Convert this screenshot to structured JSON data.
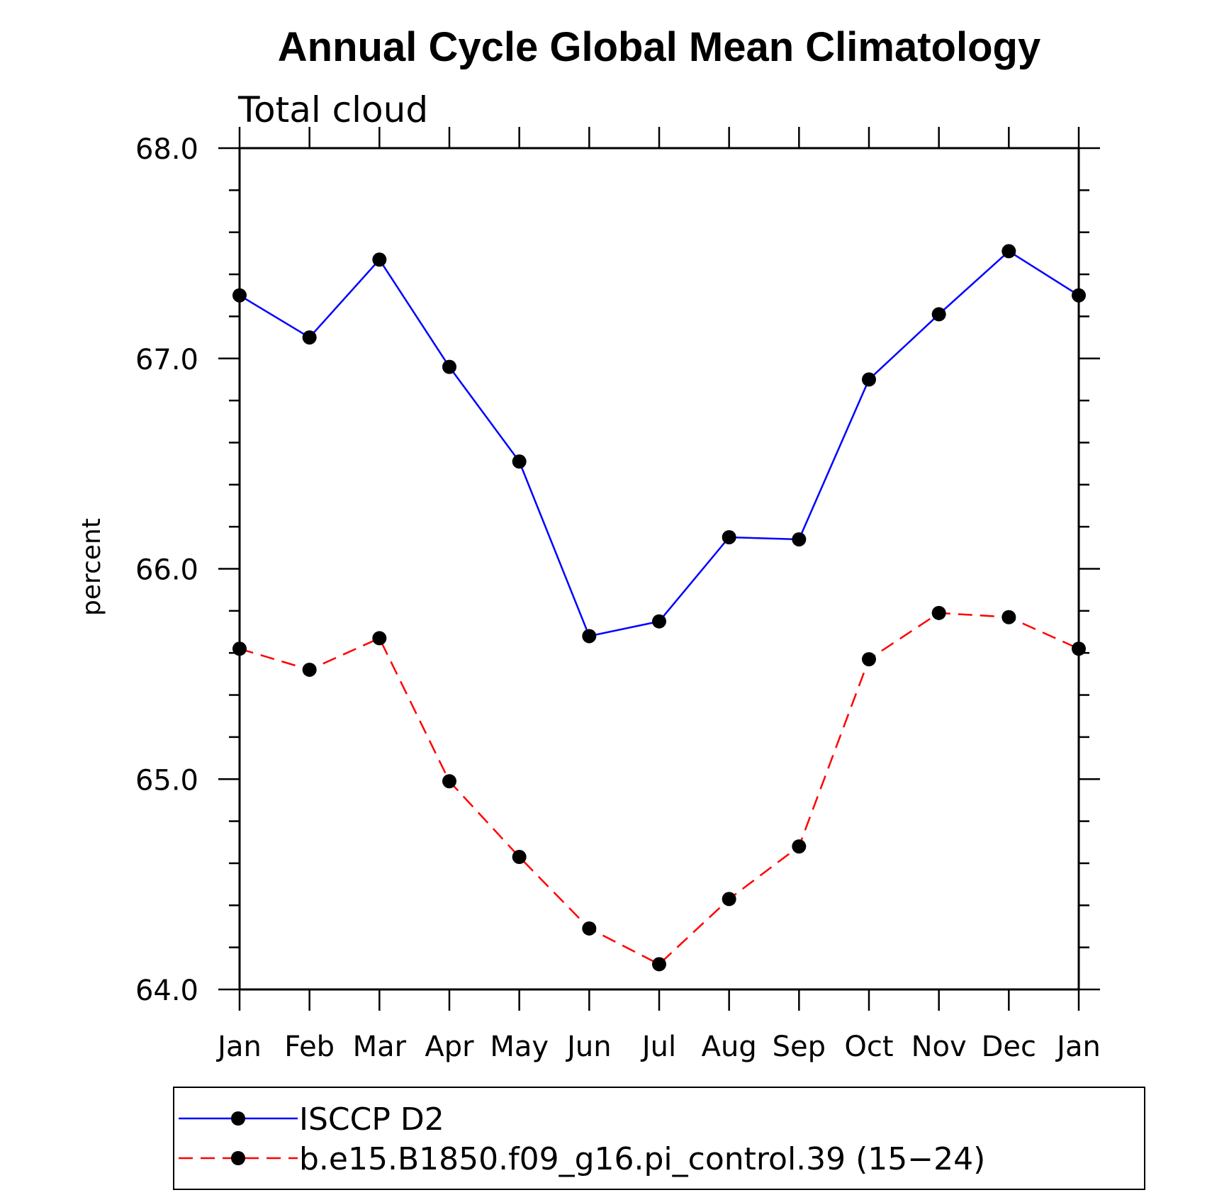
{
  "chart_data": {
    "type": "line",
    "title": "Annual Cycle Global Mean Climatology",
    "subtitle": "Total cloud",
    "xlabel": "",
    "ylabel": "percent",
    "categories": [
      "Jan",
      "Feb",
      "Mar",
      "Apr",
      "May",
      "Jun",
      "Jul",
      "Aug",
      "Sep",
      "Oct",
      "Nov",
      "Dec",
      "Jan"
    ],
    "ylim": [
      64.0,
      68.0
    ],
    "yticks": [
      "64.0",
      "65.0",
      "66.0",
      "67.0",
      "68.0"
    ],
    "yminor_step": 0.2,
    "grid": false,
    "legend_position": "bottom",
    "series": [
      {
        "name": "ISCCP D2",
        "color": "#0000ff",
        "line_style": "solid",
        "marker": "filled-circle",
        "values": [
          67.3,
          67.1,
          67.47,
          66.96,
          66.51,
          65.68,
          65.75,
          66.15,
          66.14,
          66.9,
          67.21,
          67.51,
          67.3
        ]
      },
      {
        "name": "b.e15.B1850.f09_g16.pi_control.39 (15−24)",
        "color": "#ff0000",
        "line_style": "dashed",
        "marker": "filled-circle",
        "values": [
          65.62,
          65.52,
          65.67,
          64.99,
          64.63,
          64.29,
          64.12,
          64.43,
          64.68,
          65.57,
          65.79,
          65.77,
          65.62
        ]
      }
    ]
  }
}
